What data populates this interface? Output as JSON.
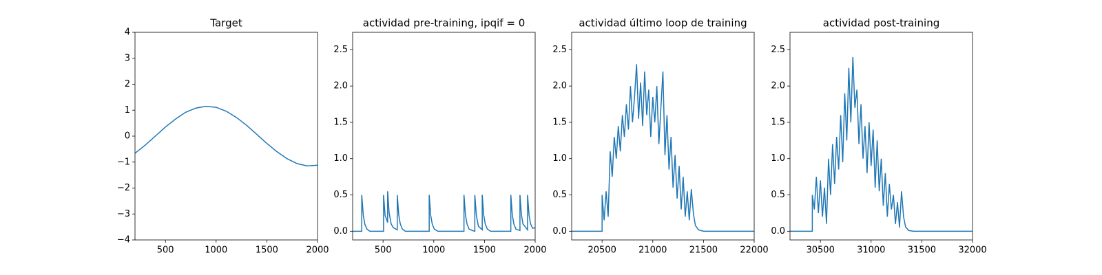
{
  "chart_data": [
    {
      "type": "line",
      "title": "Target",
      "color": "#1f77b4",
      "x": [
        200,
        300,
        400,
        500,
        600,
        700,
        800,
        900,
        1000,
        1100,
        1200,
        1300,
        1400,
        1500,
        1600,
        1700,
        1800,
        1900,
        2000
      ],
      "values": [
        -0.66,
        -0.35,
        0,
        0.35,
        0.66,
        0.92,
        1.08,
        1.15,
        1.11,
        0.96,
        0.72,
        0.42,
        0.07,
        -0.28,
        -0.6,
        -0.87,
        -1.06,
        -1.15,
        -1.12
      ],
      "xlim": [
        200,
        2000
      ],
      "ylim": [
        -4,
        4
      ],
      "xticks": [
        500,
        1000,
        1500,
        2000
      ],
      "yticks": [
        {
          "value": -4,
          "label": "−4"
        },
        {
          "value": -3,
          "label": "−3"
        },
        {
          "value": -2,
          "label": "−2"
        },
        {
          "value": -1,
          "label": "−1"
        },
        0,
        1,
        2,
        3,
        4
      ]
    },
    {
      "type": "line",
      "title": "actividad pre-training, ipqif = 0",
      "color": "#1f77b4",
      "x": [
        200,
        290,
        290,
        305,
        320,
        340,
        370,
        505,
        505,
        520,
        545,
        545,
        560,
        580,
        600,
        640,
        640,
        655,
        670,
        690,
        720,
        955,
        955,
        970,
        985,
        1005,
        1040,
        1298,
        1298,
        1313,
        1328,
        1348,
        1380,
        1405,
        1405,
        1420,
        1440,
        1478,
        1478,
        1493,
        1508,
        1528,
        1560,
        1760,
        1760,
        1775,
        1790,
        1810,
        1850,
        1850,
        1865,
        1880,
        1925,
        1925,
        1940,
        1955,
        1975,
        2000
      ],
      "values": [
        0,
        0,
        0.5,
        0.22,
        0.1,
        0.03,
        0,
        0,
        0.5,
        0.22,
        0.12,
        0.55,
        0.25,
        0.1,
        0.05,
        0.02,
        0.5,
        0.22,
        0.1,
        0.03,
        0,
        0,
        0.5,
        0.22,
        0.1,
        0.03,
        0,
        0,
        0.5,
        0.22,
        0.1,
        0.03,
        0.01,
        0,
        0.5,
        0.22,
        0.07,
        0.02,
        0.5,
        0.22,
        0.1,
        0.03,
        0,
        0,
        0.5,
        0.22,
        0.1,
        0.03,
        0.01,
        0.5,
        0.22,
        0.1,
        0.02,
        0.5,
        0.22,
        0.1,
        0.04,
        0.05
      ],
      "xlim": [
        200,
        2000
      ],
      "ylim": [
        -0.12,
        2.74
      ],
      "xticks": [
        500,
        1000,
        1500,
        2000
      ],
      "yticks": [
        {
          "value": 0,
          "label": "0.0"
        },
        0.5,
        {
          "value": 1,
          "label": "1.0"
        },
        1.5,
        {
          "value": 2,
          "label": "2.0"
        },
        2.5
      ]
    },
    {
      "type": "line",
      "title": "actividad último loop de training",
      "color": "#1f77b4",
      "x": [
        20200,
        20500,
        20500,
        20520,
        20540,
        20560,
        20580,
        20600,
        20620,
        20640,
        20660,
        20680,
        20700,
        20720,
        20740,
        20760,
        20780,
        20800,
        20820,
        20840,
        20860,
        20880,
        20900,
        20920,
        20940,
        20960,
        20980,
        21000,
        21020,
        21040,
        21060,
        21080,
        21100,
        21120,
        21140,
        21160,
        21180,
        21200,
        21220,
        21240,
        21260,
        21280,
        21300,
        21320,
        21340,
        21360,
        21380,
        21400,
        21420,
        21450,
        21500,
        22000
      ],
      "values": [
        0,
        0,
        0.5,
        0.15,
        0.55,
        0.2,
        1.1,
        0.75,
        1.3,
        1.0,
        1.45,
        1.1,
        1.6,
        1.3,
        1.75,
        1.4,
        2.0,
        1.5,
        1.85,
        2.3,
        1.55,
        2.05,
        1.45,
        2.2,
        1.6,
        1.95,
        1.3,
        1.85,
        1.5,
        2.0,
        1.2,
        1.7,
        2.2,
        1.05,
        1.6,
        0.85,
        1.3,
        0.6,
        1.05,
        0.45,
        0.9,
        0.3,
        0.75,
        0.2,
        0.55,
        0.15,
        0.58,
        0.25,
        0.08,
        0.02,
        0,
        0
      ],
      "xlim": [
        20200,
        22000
      ],
      "ylim": [
        -0.12,
        2.74
      ],
      "xticks": [
        20500,
        21000,
        21500,
        22000
      ],
      "yticks": [
        {
          "value": 0,
          "label": "0.0"
        },
        0.5,
        {
          "value": 1,
          "label": "1.0"
        },
        1.5,
        {
          "value": 2,
          "label": "2.0"
        },
        2.5
      ]
    },
    {
      "type": "line",
      "title": "actividad post-training",
      "color": "#1f77b4",
      "x": [
        30200,
        30420,
        30420,
        30440,
        30460,
        30480,
        30500,
        30520,
        30540,
        30560,
        30580,
        30600,
        30620,
        30640,
        30660,
        30680,
        30700,
        30720,
        30740,
        30760,
        30780,
        30800,
        30820,
        30840,
        30860,
        30880,
        30900,
        30920,
        30940,
        30960,
        30980,
        31000,
        31020,
        31040,
        31060,
        31080,
        31100,
        31120,
        31140,
        31160,
        31180,
        31200,
        31220,
        31240,
        31260,
        31280,
        31300,
        31320,
        31340,
        31370,
        31420,
        32000
      ],
      "values": [
        0,
        0,
        0.5,
        0.3,
        0.75,
        0.25,
        0.7,
        0.2,
        0.6,
        0.1,
        1.0,
        0.5,
        1.2,
        0.65,
        1.3,
        0.85,
        1.6,
        0.95,
        1.9,
        1.25,
        2.25,
        1.5,
        2.4,
        1.7,
        1.95,
        1.2,
        1.75,
        1.0,
        1.45,
        0.8,
        1.5,
        0.9,
        1.4,
        0.6,
        1.25,
        0.55,
        1.0,
        0.35,
        0.8,
        0.2,
        0.65,
        0.3,
        0.5,
        0.1,
        0.4,
        0.05,
        0.55,
        0.2,
        0.06,
        0.01,
        0,
        0
      ],
      "xlim": [
        30200,
        32000
      ],
      "ylim": [
        -0.12,
        2.74
      ],
      "xticks": [
        30500,
        31000,
        31500,
        32000
      ],
      "yticks": [
        {
          "value": 0,
          "label": "0.0"
        },
        0.5,
        {
          "value": 1,
          "label": "1.0"
        },
        1.5,
        {
          "value": 2,
          "label": "2.0"
        },
        2.5
      ]
    }
  ]
}
